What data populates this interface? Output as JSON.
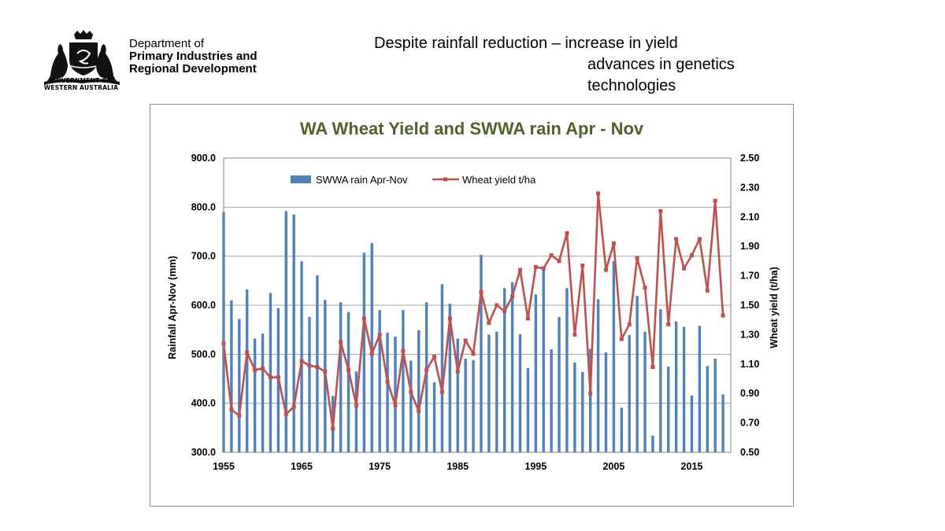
{
  "header": {
    "org_line1": "Department of",
    "org_line2": "Primary Industries and",
    "org_line3": "Regional Development",
    "gov_line1": "GOVERNMENT OF",
    "gov_line2": "WESTERN AUSTRALIA"
  },
  "headline": {
    "line1": "Despite rainfall reduction – increase in yield",
    "line2": "advances in genetics",
    "line3": "technologies"
  },
  "colors": {
    "bar": "#4f81bd",
    "line": "#c0504d",
    "title": "#4f6228",
    "grid": "#a6a6a6"
  },
  "chart_data": {
    "type": "bar+line",
    "title": "WA Wheat Yield and SWWA rain Apr - Nov",
    "ylabel": "Rainfall Apr-Nov (mm)",
    "y2label": "Wheat yield (t/ha)",
    "ylim": [
      300,
      900
    ],
    "y2lim": [
      0.5,
      2.5
    ],
    "xlim": [
      1955,
      2020
    ],
    "y_ticks": [
      "300.0",
      "400.0",
      "500.0",
      "600.0",
      "700.0",
      "800.0",
      "900.0"
    ],
    "y2_ticks": [
      "0.50",
      "0.70",
      "0.90",
      "1.10",
      "1.30",
      "1.50",
      "1.70",
      "1.90",
      "2.10",
      "2.30",
      "2.50"
    ],
    "x_ticks": [
      "1955",
      "1965",
      "1975",
      "1985",
      "1995",
      "2005",
      "2015"
    ],
    "legend": [
      "SWWA rain Apr-Nov",
      "Wheat yield t/ha"
    ],
    "legend_position": "top",
    "years": [
      1955,
      1956,
      1957,
      1958,
      1959,
      1960,
      1961,
      1962,
      1963,
      1964,
      1965,
      1966,
      1967,
      1968,
      1969,
      1970,
      1971,
      1972,
      1973,
      1974,
      1975,
      1976,
      1977,
      1978,
      1979,
      1980,
      1981,
      1982,
      1983,
      1984,
      1985,
      1986,
      1987,
      1988,
      1989,
      1990,
      1991,
      1992,
      1993,
      1994,
      1995,
      1996,
      1997,
      1998,
      1999,
      2000,
      2001,
      2002,
      2003,
      2004,
      2005,
      2006,
      2007,
      2008,
      2009,
      2010,
      2011,
      2012,
      2013,
      2014,
      2015,
      2016,
      2017,
      2018,
      2019
    ],
    "series": [
      {
        "name": "SWWA rain Apr-Nov",
        "type": "bar",
        "axis": "left",
        "values": [
          790,
          610,
          572,
          632,
          532,
          542,
          625,
          594,
          792,
          785,
          690,
          576,
          661,
          611,
          415,
          606,
          586,
          465,
          707,
          727,
          590,
          544,
          536,
          590,
          487,
          549,
          606,
          443,
          643,
          603,
          532,
          491,
          488,
          703,
          540,
          546,
          635,
          647,
          541,
          472,
          622,
          675,
          510,
          576,
          635,
          483,
          464,
          511,
          612,
          504,
          690,
          391,
          539,
          619,
          546,
          334,
          592,
          475,
          567,
          556,
          416,
          558,
          476,
          491,
          418
        ]
      },
      {
        "name": "Wheat yield t/ha",
        "type": "line",
        "axis": "right",
        "values": [
          1.24,
          0.79,
          0.75,
          1.18,
          1.06,
          1.07,
          1.01,
          1.01,
          0.76,
          0.81,
          1.12,
          1.09,
          1.08,
          1.05,
          0.66,
          1.25,
          1.06,
          0.82,
          1.41,
          1.17,
          1.3,
          0.98,
          0.82,
          1.19,
          0.91,
          0.78,
          1.06,
          1.15,
          0.91,
          1.41,
          1.05,
          1.26,
          1.17,
          1.59,
          1.38,
          1.5,
          1.46,
          1.56,
          1.74,
          1.41,
          1.76,
          1.75,
          1.84,
          1.8,
          1.99,
          1.3,
          1.77,
          0.9,
          2.26,
          1.74,
          1.92,
          1.27,
          1.37,
          1.82,
          1.62,
          1.08,
          2.14,
          1.37,
          1.95,
          1.75,
          1.84,
          1.95,
          1.6,
          2.21,
          1.43
        ]
      }
    ]
  }
}
